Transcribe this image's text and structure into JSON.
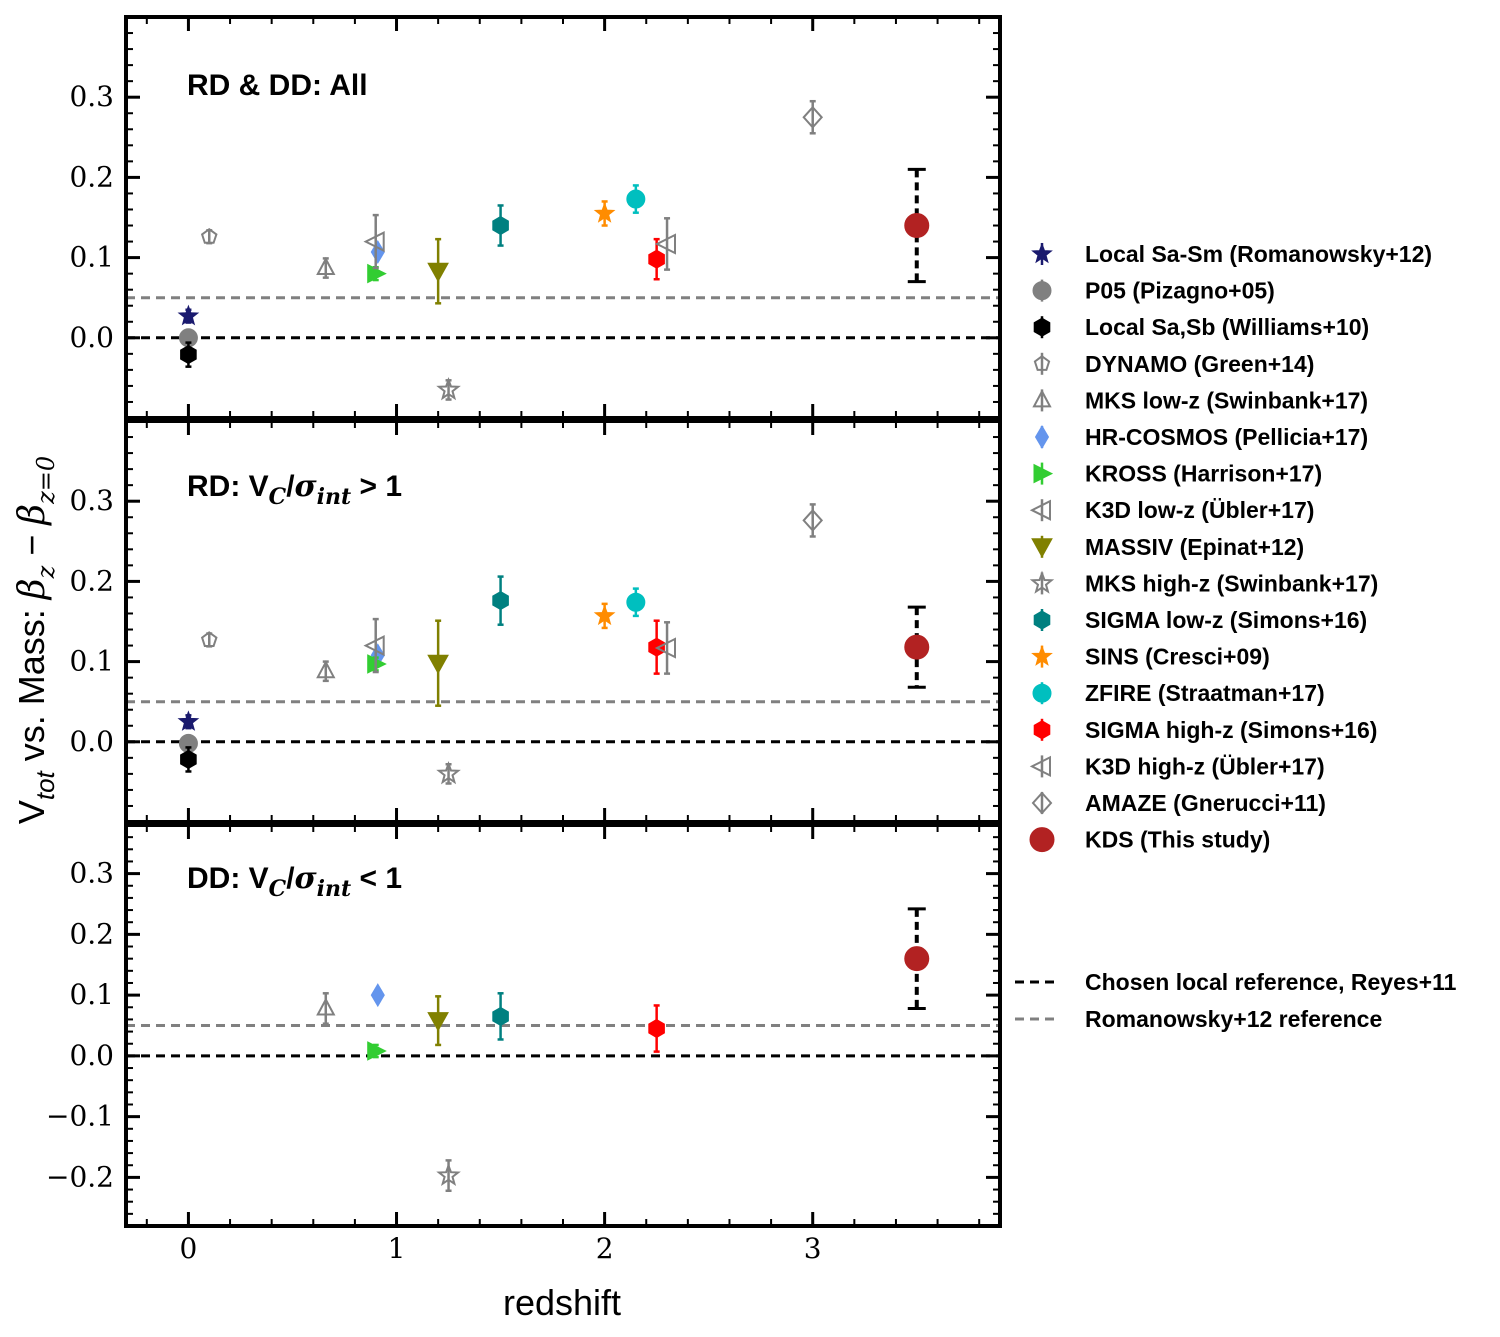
{
  "chart_data": {
    "type": "scatter",
    "xlabel": "redshift",
    "ylabel": "V_tot vs. Mass: β_z − β_z=0",
    "xlim": [
      -0.3,
      3.9
    ],
    "xticks": [
      0,
      1,
      2,
      3
    ],
    "reference_lines": [
      {
        "name": "Chosen local reference, Reyes+11",
        "y": 0.0,
        "color": "#000000"
      },
      {
        "name": "Romanowsky+12 reference",
        "y": 0.05,
        "color": "#808080"
      }
    ],
    "panels": [
      {
        "title": "RD & DD: All",
        "ylim": [
          -0.1,
          0.4
        ],
        "yticks": [
          0.0,
          0.1,
          0.2,
          0.3
        ],
        "points": [
          {
            "dataset": "Local Sa-Sm (Romanowsky+12)",
            "x": 0.0,
            "y": 0.027,
            "err": 0.008
          },
          {
            "dataset": "P05 (Pizagno+05)",
            "x": 0.0,
            "y": 0.0,
            "err": 0.005
          },
          {
            "dataset": "Local Sa,Sb (Williams+10)",
            "x": 0.0,
            "y": -0.021,
            "err": 0.015
          },
          {
            "dataset": "DYNAMO (Green+14)",
            "x": 0.1,
            "y": 0.126,
            "err": 0.008
          },
          {
            "dataset": "MKS low-z (Swinbank+17)",
            "x": 0.66,
            "y": 0.087,
            "err": 0.012
          },
          {
            "dataset": "HR-COSMOS (Pellicia+17)",
            "x": 0.91,
            "y": 0.107,
            "err": 0.006
          },
          {
            "dataset": "KROSS (Harrison+17)",
            "x": 0.9,
            "y": 0.08,
            "err": 0.008
          },
          {
            "dataset": "K3D low-z (Übler+17)",
            "x": 0.9,
            "y": 0.12,
            "err": 0.033
          },
          {
            "dataset": "MASSIV (Epinat+12)",
            "x": 1.2,
            "y": 0.083,
            "err": 0.04
          },
          {
            "dataset": "MKS high-z (Swinbank+17)",
            "x": 1.25,
            "y": -0.065,
            "err": 0.012
          },
          {
            "dataset": "SIGMA low-z (Simons+16)",
            "x": 1.5,
            "y": 0.14,
            "err": 0.025
          },
          {
            "dataset": "SINS (Cresci+09)",
            "x": 2.0,
            "y": 0.155,
            "err": 0.015
          },
          {
            "dataset": "ZFIRE (Straatman+17)",
            "x": 2.15,
            "y": 0.173,
            "err": 0.017
          },
          {
            "dataset": "SIGMA high-z (Simons+16)",
            "x": 2.25,
            "y": 0.098,
            "err": 0.025
          },
          {
            "dataset": "K3D high-z (Übler+17)",
            "x": 2.3,
            "y": 0.117,
            "err": 0.032
          },
          {
            "dataset": "AMAZE (Gnerucci+11)",
            "x": 3.0,
            "y": 0.275,
            "err": 0.02
          },
          {
            "dataset": "KDS (This study)",
            "x": 3.5,
            "y": 0.14,
            "err": 0.07
          }
        ]
      },
      {
        "title": "RD: V",
        "ylim": [
          -0.1,
          0.4
        ],
        "yticks": [
          0.0,
          0.1,
          0.2,
          0.3
        ],
        "points": [
          {
            "dataset": "Local Sa-Sm (Romanowsky+12)",
            "x": 0.0,
            "y": 0.025,
            "err": 0.008
          },
          {
            "dataset": "P05 (Pizagno+05)",
            "x": 0.0,
            "y": -0.002,
            "err": 0.005
          },
          {
            "dataset": "Local Sa,Sb (Williams+10)",
            "x": 0.0,
            "y": -0.022,
            "err": 0.015
          },
          {
            "dataset": "DYNAMO (Green+14)",
            "x": 0.1,
            "y": 0.127,
            "err": 0.008
          },
          {
            "dataset": "MKS low-z (Swinbank+17)",
            "x": 0.66,
            "y": 0.088,
            "err": 0.012
          },
          {
            "dataset": "HR-COSMOS (Pellicia+17)",
            "x": 0.91,
            "y": 0.108,
            "err": 0.006
          },
          {
            "dataset": "KROSS (Harrison+17)",
            "x": 0.9,
            "y": 0.097,
            "err": 0.008
          },
          {
            "dataset": "K3D low-z (Übler+17)",
            "x": 0.9,
            "y": 0.12,
            "err": 0.033
          },
          {
            "dataset": "MASSIV (Epinat+12)",
            "x": 1.2,
            "y": 0.098,
            "err": 0.053
          },
          {
            "dataset": "MKS high-z (Swinbank+17)",
            "x": 1.25,
            "y": -0.04,
            "err": 0.012
          },
          {
            "dataset": "SIGMA low-z (Simons+16)",
            "x": 1.5,
            "y": 0.176,
            "err": 0.03
          },
          {
            "dataset": "SINS (Cresci+09)",
            "x": 2.0,
            "y": 0.157,
            "err": 0.015
          },
          {
            "dataset": "ZFIRE (Straatman+17)",
            "x": 2.15,
            "y": 0.174,
            "err": 0.017
          },
          {
            "dataset": "SIGMA high-z (Simons+16)",
            "x": 2.25,
            "y": 0.118,
            "err": 0.033
          },
          {
            "dataset": "K3D high-z (Übler+17)",
            "x": 2.3,
            "y": 0.117,
            "err": 0.032
          },
          {
            "dataset": "AMAZE (Gnerucci+11)",
            "x": 3.0,
            "y": 0.276,
            "err": 0.02
          },
          {
            "dataset": "KDS (This study)",
            "x": 3.5,
            "y": 0.118,
            "err": 0.05
          }
        ]
      },
      {
        "title": "DD: V",
        "ylim": [
          -0.28,
          0.38
        ],
        "yticks": [
          -0.2,
          -0.1,
          0.0,
          0.1,
          0.2,
          0.3
        ],
        "points": [
          {
            "dataset": "MKS low-z (Swinbank+17)",
            "x": 0.66,
            "y": 0.078,
            "err": 0.025
          },
          {
            "dataset": "HR-COSMOS (Pellicia+17)",
            "x": 0.91,
            "y": 0.1,
            "err": 0.008
          },
          {
            "dataset": "KROSS (Harrison+17)",
            "x": 0.9,
            "y": 0.008,
            "err": 0.01
          },
          {
            "dataset": "MASSIV (Epinat+12)",
            "x": 1.2,
            "y": 0.058,
            "err": 0.04
          },
          {
            "dataset": "MKS high-z (Swinbank+17)",
            "x": 1.25,
            "y": -0.197,
            "err": 0.025
          },
          {
            "dataset": "SIGMA low-z (Simons+16)",
            "x": 1.5,
            "y": 0.065,
            "err": 0.038
          },
          {
            "dataset": "SIGMA high-z (Simons+16)",
            "x": 2.25,
            "y": 0.045,
            "err": 0.038
          },
          {
            "dataset": "KDS (This study)",
            "x": 3.5,
            "y": 0.16,
            "err": 0.082
          }
        ]
      }
    ],
    "legend": [
      {
        "label": "Local Sa-Sm (Romanowsky+12)",
        "marker": "star",
        "color": "#1a1a6e",
        "fill": true
      },
      {
        "label": "P05 (Pizagno+05)",
        "marker": "circle",
        "color": "#808080",
        "fill": true
      },
      {
        "label": "Local Sa,Sb (Williams+10)",
        "marker": "hexagon",
        "color": "#000000",
        "fill": true
      },
      {
        "label": "DYNAMO (Green+14)",
        "marker": "pentagon",
        "color": "#808080",
        "fill": false
      },
      {
        "label": "MKS low-z (Swinbank+17)",
        "marker": "triangle-up",
        "color": "#808080",
        "fill": false
      },
      {
        "label": "HR-COSMOS (Pellicia+17)",
        "marker": "thin-diamond",
        "color": "#6495ed",
        "fill": true
      },
      {
        "label": "KROSS (Harrison+17)",
        "marker": "triangle-right",
        "color": "#32cd32",
        "fill": true
      },
      {
        "label": "K3D low-z (Übler+17)",
        "marker": "triangle-left",
        "color": "#808080",
        "fill": false
      },
      {
        "label": "MASSIV (Epinat+12)",
        "marker": "triangle-down",
        "color": "#808000",
        "fill": true
      },
      {
        "label": "MKS high-z (Swinbank+17)",
        "marker": "star",
        "color": "#808080",
        "fill": false
      },
      {
        "label": "SIGMA low-z (Simons+16)",
        "marker": "hexagon",
        "color": "#008080",
        "fill": true
      },
      {
        "label": "SINS (Cresci+09)",
        "marker": "star",
        "color": "#ff8c00",
        "fill": true
      },
      {
        "label": "ZFIRE (Straatman+17)",
        "marker": "circle",
        "color": "#00bfbf",
        "fill": true
      },
      {
        "label": "SIGMA high-z (Simons+16)",
        "marker": "hexagon",
        "color": "#ff0000",
        "fill": true
      },
      {
        "label": "K3D high-z (Übler+17)",
        "marker": "triangle-left",
        "color": "#808080",
        "fill": false
      },
      {
        "label": "AMAZE (Gnerucci+11)",
        "marker": "diamond",
        "color": "#808080",
        "fill": false
      },
      {
        "label": "KDS (This study)",
        "marker": "big-circle",
        "color": "#b22222",
        "fill": true
      }
    ]
  }
}
